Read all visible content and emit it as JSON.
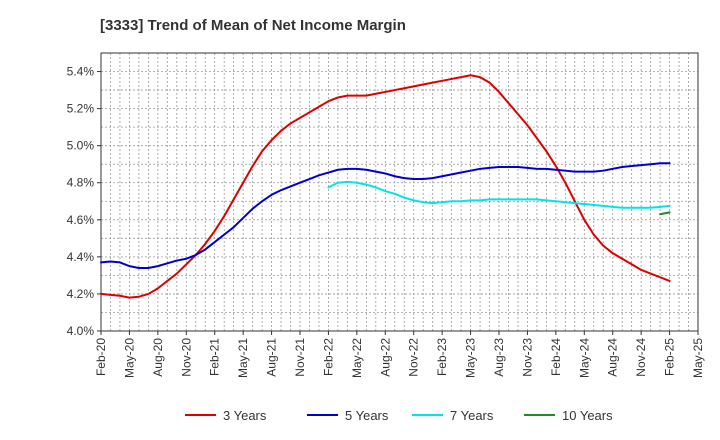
{
  "chart_data": {
    "type": "line",
    "title": "[3333]  Trend of Mean of Net Income Margin",
    "xlabel": "",
    "ylabel": "",
    "ylim": [
      4.0,
      5.5
    ],
    "y_ticks": [
      "4.0%",
      "4.2%",
      "4.4%",
      "4.6%",
      "4.8%",
      "5.0%",
      "5.2%",
      "5.4%"
    ],
    "y_tick_values": [
      4.0,
      4.2,
      4.4,
      4.6,
      4.8,
      5.0,
      5.2,
      5.4
    ],
    "categories": [
      "Feb-20",
      "May-20",
      "Aug-20",
      "Nov-20",
      "Feb-21",
      "May-21",
      "Aug-21",
      "Nov-21",
      "Feb-22",
      "May-22",
      "Aug-22",
      "Nov-22",
      "Feb-23",
      "May-23",
      "Aug-23",
      "Nov-23",
      "Feb-24",
      "May-24",
      "Aug-24",
      "Nov-24",
      "Feb-25",
      "May-25"
    ],
    "grid": true,
    "legend_position": "bottom",
    "series": [
      {
        "name": "3 Years",
        "color": "#dd0000",
        "points": [
          [
            "Feb-20",
            4.2
          ],
          [
            "Mar-20",
            4.195
          ],
          [
            "Apr-20",
            4.19
          ],
          [
            "May-20",
            4.18
          ],
          [
            "Jun-20",
            4.185
          ],
          [
            "Jul-20",
            4.2
          ],
          [
            "Aug-20",
            4.23
          ],
          [
            "Sep-20",
            4.27
          ],
          [
            "Oct-20",
            4.31
          ],
          [
            "Nov-20",
            4.36
          ],
          [
            "Dec-20",
            4.41
          ],
          [
            "Jan-21",
            4.47
          ],
          [
            "Feb-21",
            4.54
          ],
          [
            "Mar-21",
            4.62
          ],
          [
            "Apr-21",
            4.71
          ],
          [
            "May-21",
            4.8
          ],
          [
            "Jun-21",
            4.89
          ],
          [
            "Jul-21",
            4.97
          ],
          [
            "Aug-21",
            5.03
          ],
          [
            "Sep-21",
            5.08
          ],
          [
            "Oct-21",
            5.12
          ],
          [
            "Nov-21",
            5.15
          ],
          [
            "Dec-21",
            5.18
          ],
          [
            "Jan-22",
            5.21
          ],
          [
            "Feb-22",
            5.24
          ],
          [
            "Mar-22",
            5.26
          ],
          [
            "Apr-22",
            5.27
          ],
          [
            "May-22",
            5.27
          ],
          [
            "Jun-22",
            5.27
          ],
          [
            "Jul-22",
            5.28
          ],
          [
            "Aug-22",
            5.29
          ],
          [
            "Sep-22",
            5.3
          ],
          [
            "Oct-22",
            5.31
          ],
          [
            "Nov-22",
            5.32
          ],
          [
            "Dec-22",
            5.33
          ],
          [
            "Jan-23",
            5.34
          ],
          [
            "Feb-23",
            5.35
          ],
          [
            "Mar-23",
            5.36
          ],
          [
            "Apr-23",
            5.37
          ],
          [
            "May-23",
            5.38
          ],
          [
            "Jun-23",
            5.37
          ],
          [
            "Jul-23",
            5.34
          ],
          [
            "Aug-23",
            5.29
          ],
          [
            "Sep-23",
            5.23
          ],
          [
            "Oct-23",
            5.17
          ],
          [
            "Nov-23",
            5.11
          ],
          [
            "Dec-23",
            5.04
          ],
          [
            "Jan-24",
            4.97
          ],
          [
            "Feb-24",
            4.89
          ],
          [
            "Mar-24",
            4.8
          ],
          [
            "Apr-24",
            4.7
          ],
          [
            "May-24",
            4.6
          ],
          [
            "Jun-24",
            4.52
          ],
          [
            "Jul-24",
            4.46
          ],
          [
            "Aug-24",
            4.42
          ],
          [
            "Sep-24",
            4.39
          ],
          [
            "Oct-24",
            4.36
          ],
          [
            "Nov-24",
            4.33
          ],
          [
            "Dec-24",
            4.31
          ],
          [
            "Jan-25",
            4.29
          ],
          [
            "Feb-25",
            4.27
          ]
        ]
      },
      {
        "name": "5 Years",
        "color": "#0000cc",
        "points": [
          [
            "Feb-20",
            4.37
          ],
          [
            "Mar-20",
            4.375
          ],
          [
            "Apr-20",
            4.37
          ],
          [
            "May-20",
            4.35
          ],
          [
            "Jun-20",
            4.34
          ],
          [
            "Jul-20",
            4.34
          ],
          [
            "Aug-20",
            4.35
          ],
          [
            "Sep-20",
            4.365
          ],
          [
            "Oct-20",
            4.38
          ],
          [
            "Nov-20",
            4.39
          ],
          [
            "Dec-20",
            4.41
          ],
          [
            "Jan-21",
            4.44
          ],
          [
            "Feb-21",
            4.48
          ],
          [
            "Mar-21",
            4.52
          ],
          [
            "Apr-21",
            4.56
          ],
          [
            "May-21",
            4.61
          ],
          [
            "Jun-21",
            4.66
          ],
          [
            "Jul-21",
            4.7
          ],
          [
            "Aug-21",
            4.735
          ],
          [
            "Sep-21",
            4.76
          ],
          [
            "Oct-21",
            4.78
          ],
          [
            "Nov-21",
            4.8
          ],
          [
            "Dec-21",
            4.82
          ],
          [
            "Jan-22",
            4.84
          ],
          [
            "Feb-22",
            4.855
          ],
          [
            "Mar-22",
            4.87
          ],
          [
            "Apr-22",
            4.875
          ],
          [
            "May-22",
            4.875
          ],
          [
            "Jun-22",
            4.87
          ],
          [
            "Jul-22",
            4.86
          ],
          [
            "Aug-22",
            4.85
          ],
          [
            "Sep-22",
            4.835
          ],
          [
            "Oct-22",
            4.825
          ],
          [
            "Nov-22",
            4.82
          ],
          [
            "Dec-22",
            4.82
          ],
          [
            "Jan-23",
            4.825
          ],
          [
            "Feb-23",
            4.835
          ],
          [
            "Mar-23",
            4.845
          ],
          [
            "Apr-23",
            4.855
          ],
          [
            "May-23",
            4.865
          ],
          [
            "Jun-23",
            4.875
          ],
          [
            "Jul-23",
            4.88
          ],
          [
            "Aug-23",
            4.885
          ],
          [
            "Sep-23",
            4.885
          ],
          [
            "Oct-23",
            4.885
          ],
          [
            "Nov-23",
            4.88
          ],
          [
            "Dec-23",
            4.875
          ],
          [
            "Jan-24",
            4.875
          ],
          [
            "Feb-24",
            4.87
          ],
          [
            "Mar-24",
            4.865
          ],
          [
            "Apr-24",
            4.86
          ],
          [
            "May-24",
            4.86
          ],
          [
            "Jun-24",
            4.86
          ],
          [
            "Jul-24",
            4.865
          ],
          [
            "Aug-24",
            4.875
          ],
          [
            "Sep-24",
            4.885
          ],
          [
            "Oct-24",
            4.89
          ],
          [
            "Nov-24",
            4.895
          ],
          [
            "Dec-24",
            4.9
          ],
          [
            "Jan-25",
            4.905
          ],
          [
            "Feb-25",
            4.905
          ]
        ]
      },
      {
        "name": "7 Years",
        "color": "#00e5e5",
        "points": [
          [
            "Feb-22",
            4.775
          ],
          [
            "Mar-22",
            4.8
          ],
          [
            "Apr-22",
            4.805
          ],
          [
            "May-22",
            4.8
          ],
          [
            "Jun-22",
            4.79
          ],
          [
            "Jul-22",
            4.775
          ],
          [
            "Aug-22",
            4.755
          ],
          [
            "Sep-22",
            4.74
          ],
          [
            "Oct-22",
            4.72
          ],
          [
            "Nov-22",
            4.705
          ],
          [
            "Dec-22",
            4.695
          ],
          [
            "Jan-23",
            4.69
          ],
          [
            "Feb-23",
            4.695
          ],
          [
            "Mar-23",
            4.7
          ],
          [
            "Apr-23",
            4.7
          ],
          [
            "May-23",
            4.705
          ],
          [
            "Jun-23",
            4.705
          ],
          [
            "Jul-23",
            4.71
          ],
          [
            "Aug-23",
            4.71
          ],
          [
            "Sep-23",
            4.71
          ],
          [
            "Oct-23",
            4.71
          ],
          [
            "Nov-23",
            4.71
          ],
          [
            "Dec-23",
            4.71
          ],
          [
            "Jan-24",
            4.705
          ],
          [
            "Feb-24",
            4.7
          ],
          [
            "Mar-24",
            4.695
          ],
          [
            "Apr-24",
            4.69
          ],
          [
            "May-24",
            4.685
          ],
          [
            "Jun-24",
            4.68
          ],
          [
            "Jul-24",
            4.675
          ],
          [
            "Aug-24",
            4.67
          ],
          [
            "Sep-24",
            4.665
          ],
          [
            "Oct-24",
            4.665
          ],
          [
            "Nov-24",
            4.665
          ],
          [
            "Dec-24",
            4.665
          ],
          [
            "Jan-25",
            4.67
          ],
          [
            "Feb-25",
            4.675
          ]
        ]
      },
      {
        "name": "10 Years",
        "color": "#228b22",
        "points": [
          [
            "Jan-25",
            4.63
          ],
          [
            "Feb-25",
            4.64
          ]
        ]
      }
    ]
  }
}
